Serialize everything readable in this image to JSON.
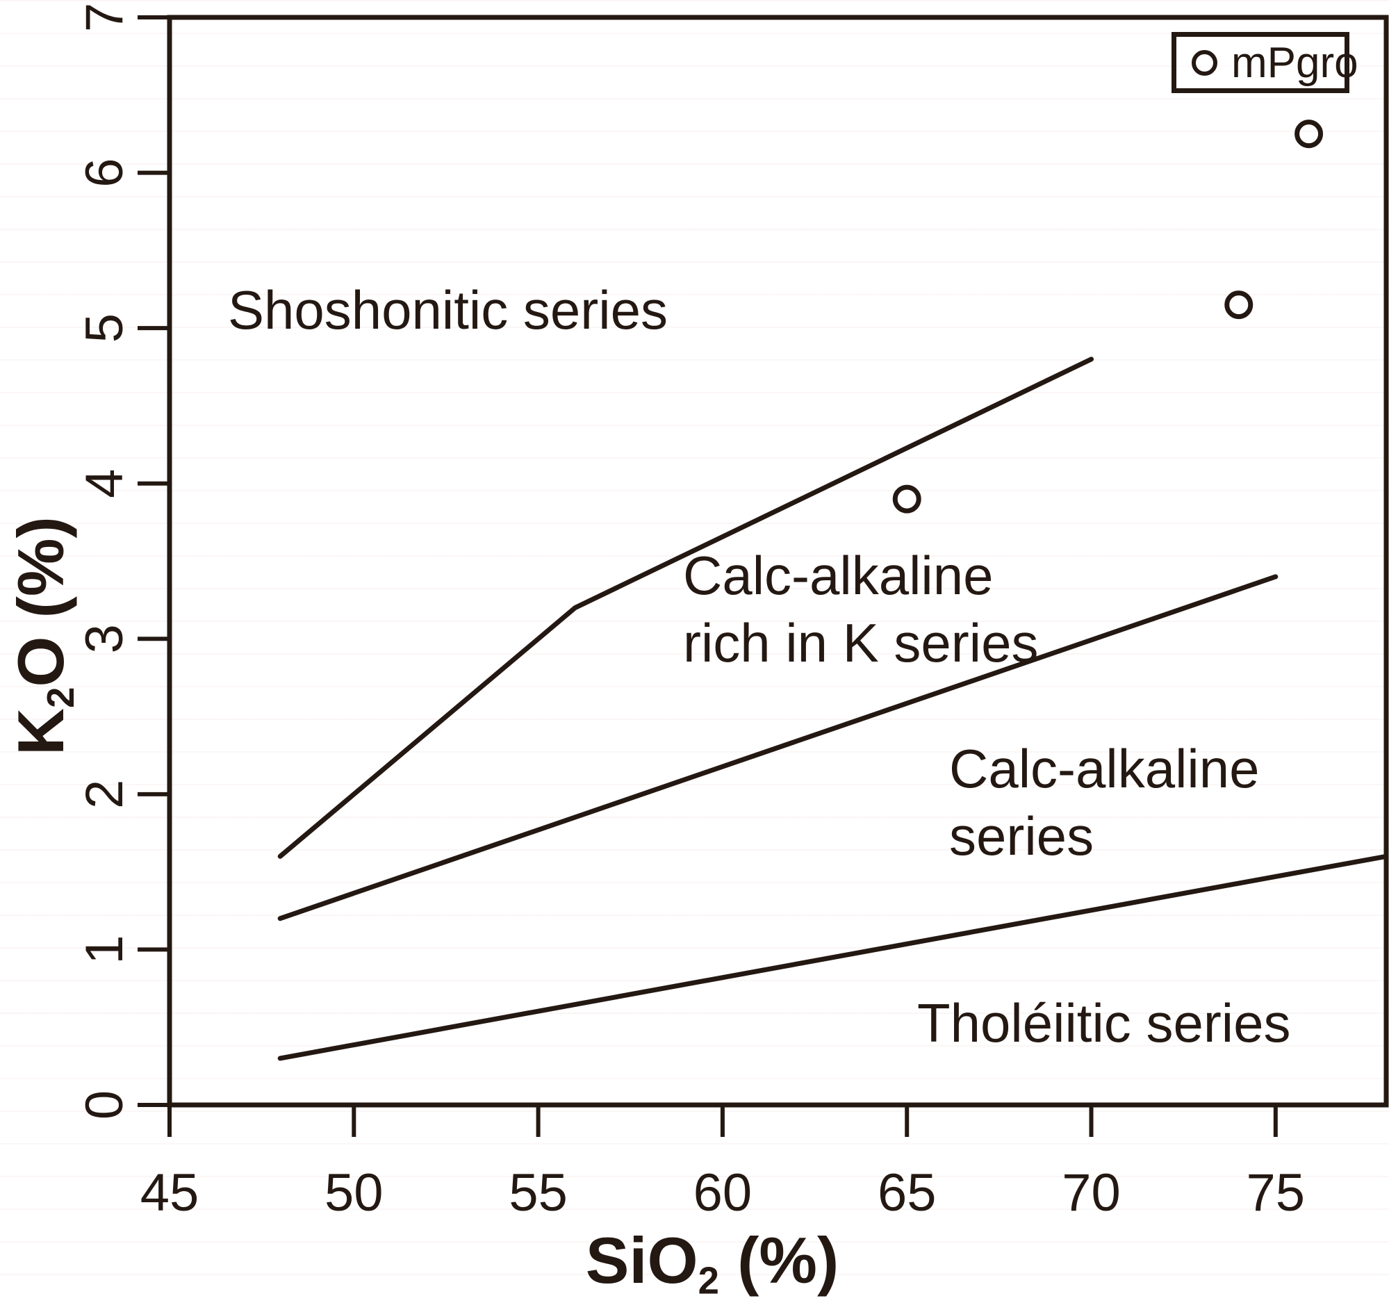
{
  "figure": {
    "ink_color": "#241812",
    "background": "#ffffff"
  },
  "axes": {
    "x_title": {
      "pre": "SiO",
      "sub": "2",
      "post": " (%)"
    },
    "y_title": {
      "pre": "K",
      "sub": "2",
      "post": "O (%)"
    }
  },
  "chart_data": {
    "type": "scatter",
    "title": "",
    "xlabel": "SiO2 (%)",
    "ylabel": "K2O (%)",
    "xlim": [
      45,
      78
    ],
    "ylim": [
      0,
      7
    ],
    "x_ticks": [
      45,
      50,
      55,
      60,
      65,
      70,
      75
    ],
    "y_ticks": [
      0,
      1,
      2,
      3,
      4,
      5,
      6,
      7
    ],
    "grid": false,
    "legend_position": "top-right",
    "series": [
      {
        "name": "mPgro",
        "marker": "open-circle",
        "points": [
          [
            65.0,
            3.9
          ],
          [
            74.0,
            5.15
          ],
          [
            75.9,
            6.25
          ]
        ]
      }
    ],
    "boundary_lines": [
      {
        "name": "shoshonitic-boundary",
        "points": [
          [
            48,
            1.6
          ],
          [
            56,
            3.2
          ],
          [
            70,
            4.8
          ]
        ]
      },
      {
        "name": "high-k-calc-alkaline-boundary",
        "points": [
          [
            48,
            1.2
          ],
          [
            75,
            3.4
          ]
        ]
      },
      {
        "name": "tholeiitic-calc-alkaline-boundary",
        "points": [
          [
            48,
            0.3
          ],
          [
            78,
            1.6
          ]
        ]
      }
    ],
    "annotations": [
      {
        "text": "Shoshonitic series",
        "x": 46.6,
        "y": 5.1
      },
      {
        "text": "Calc-alkaline\nrich in K series",
        "x": 59.0,
        "y": 3.2
      },
      {
        "text": "Calc-alkaline\nseries",
        "x": 66.2,
        "y": 1.9
      },
      {
        "text": "Tholéiitic series",
        "x": 65.3,
        "y": 0.55
      }
    ]
  }
}
